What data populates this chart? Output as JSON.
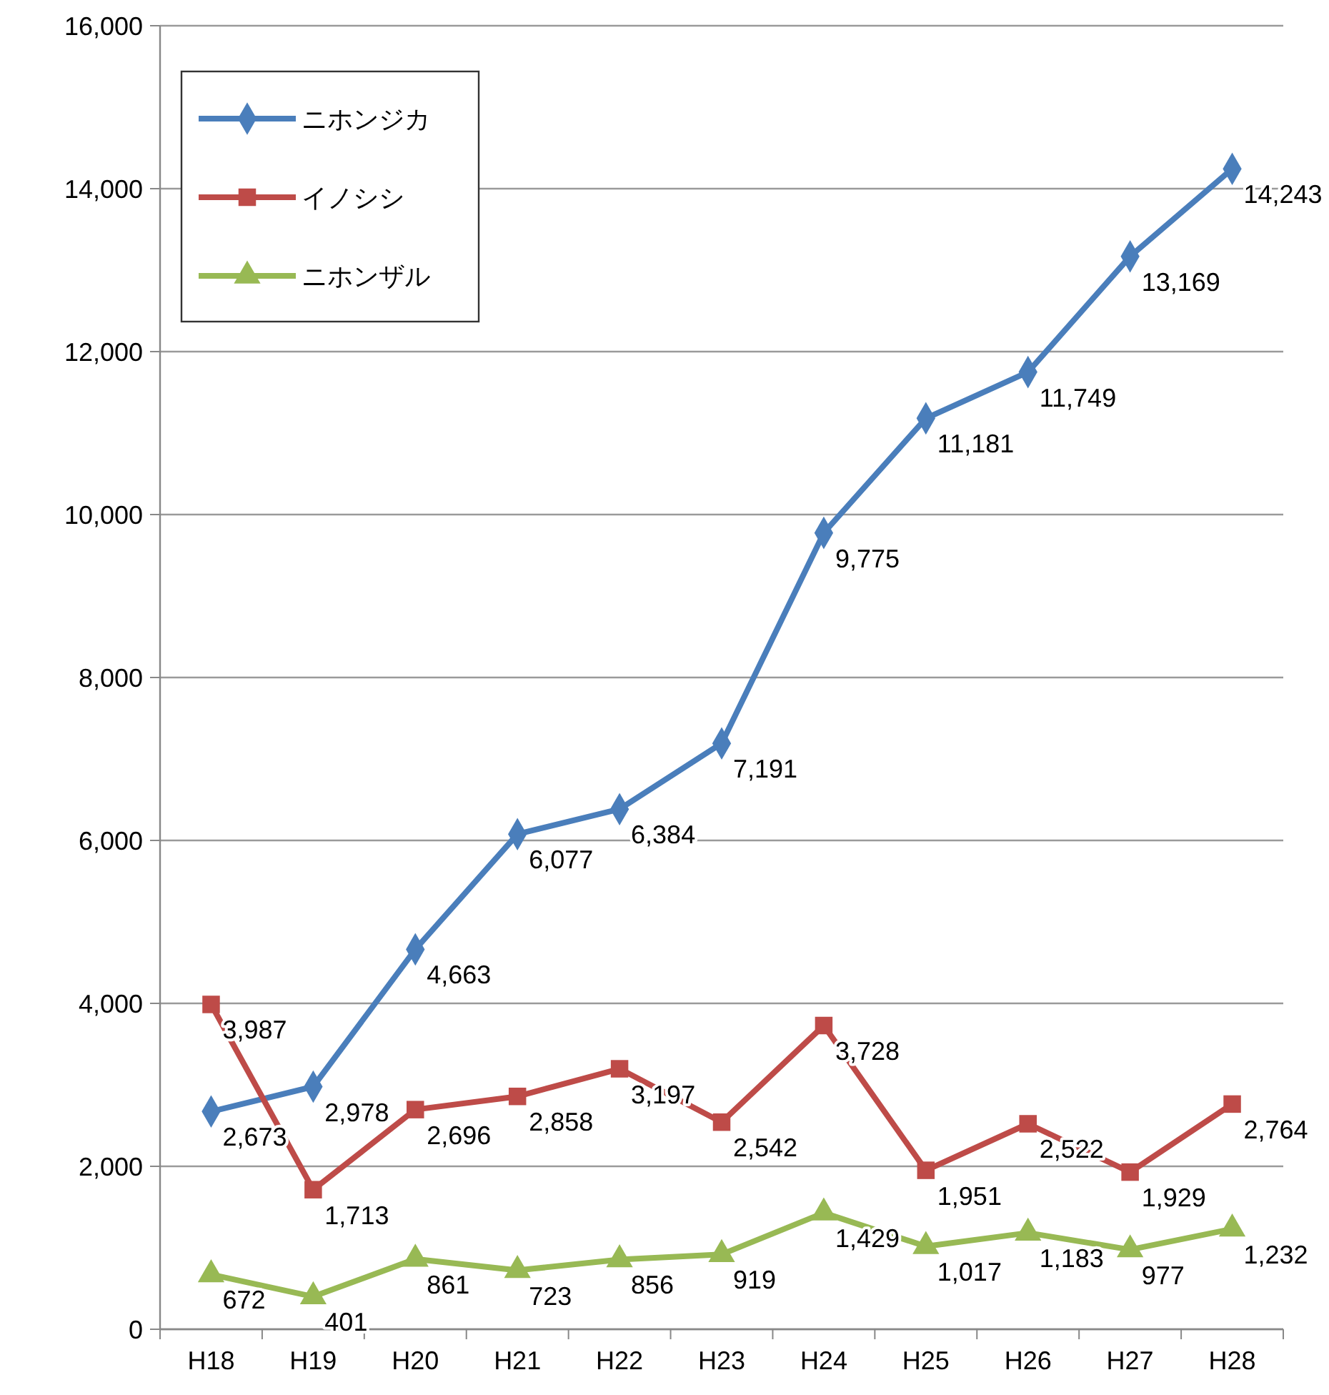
{
  "chart_data": {
    "type": "line",
    "categories": [
      "H18",
      "H19",
      "H20",
      "H21",
      "H22",
      "H23",
      "H24",
      "H25",
      "H26",
      "H27",
      "H28"
    ],
    "series": [
      {
        "name": "ニホンジカ",
        "color": "#4a7ebb",
        "marker": "diamond",
        "values": [
          2673,
          2978,
          4663,
          6077,
          6384,
          7191,
          9775,
          11181,
          11749,
          13169,
          14243
        ],
        "value_labels": [
          "2,673",
          "2,978",
          "4,663",
          "6,077",
          "6,384",
          "7,191",
          "9,775",
          "11,181",
          "11,749",
          "13,169",
          "14,243"
        ]
      },
      {
        "name": "イノシシ",
        "color": "#be4b48",
        "marker": "square",
        "values": [
          3987,
          1713,
          2696,
          2858,
          3197,
          2542,
          3728,
          1951,
          2522,
          1929,
          2764
        ],
        "value_labels": [
          "3,987",
          "1,713",
          "2,696",
          "2,858",
          "3,197",
          "2,542",
          "3,728",
          "1,951",
          "2,522",
          "1,929",
          "2,764"
        ]
      },
      {
        "name": "ニホンザル",
        "color": "#98b954",
        "marker": "triangle",
        "values": [
          672,
          401,
          861,
          723,
          856,
          919,
          1429,
          1017,
          1183,
          977,
          1232
        ],
        "value_labels": [
          "672",
          "401",
          "861",
          "723",
          "856",
          "919",
          "1,429",
          "1,017",
          "1,183",
          "977",
          "1,232"
        ]
      }
    ],
    "ylim": [
      0,
      16000
    ],
    "yticks": [
      {
        "value": 0,
        "label": "0"
      },
      {
        "value": 2000,
        "label": "2,000"
      },
      {
        "value": 4000,
        "label": "4,000"
      },
      {
        "value": 6000,
        "label": "6,000"
      },
      {
        "value": 8000,
        "label": "8,000"
      },
      {
        "value": 10000,
        "label": "10,000"
      },
      {
        "value": 12000,
        "label": "12,000"
      },
      {
        "value": 14000,
        "label": "14,000"
      },
      {
        "value": 16000,
        "label": "16,000"
      }
    ],
    "grid": "y",
    "legend": "top left"
  }
}
